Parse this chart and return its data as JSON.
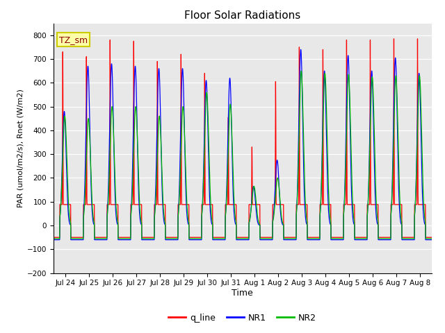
{
  "title": "Floor Solar Radiations",
  "xlabel": "Time",
  "ylabel": "PAR (umol/m2/s), Rnet (W/m2)",
  "ylim": [
    -200,
    850
  ],
  "yticks": [
    -200,
    -100,
    0,
    100,
    200,
    300,
    400,
    500,
    600,
    700,
    800
  ],
  "xtick_labels": [
    "Jul 24",
    "Jul 25",
    "Jul 26",
    "Jul 27",
    "Jul 28",
    "Jul 29",
    "Jul 30",
    "Jul 31",
    "Aug 1",
    "Aug 2",
    "Aug 3",
    "Aug 4",
    "Aug 5",
    "Aug 6",
    "Aug 7",
    "Aug 8"
  ],
  "legend_labels": [
    "q_line",
    "NR1",
    "NR2"
  ],
  "legend_colors": [
    "#ff0000",
    "#0000ff",
    "#00bb00"
  ],
  "line_colors": {
    "q_line": "#ff0000",
    "NR1": "#0000ff",
    "NR2": "#00bb00"
  },
  "bg_color": "#e8e8e8",
  "annotation_text": "TZ_sm",
  "annotation_bg": "#ffffaa",
  "annotation_border": "#cccc00",
  "n_points_per_day": 144,
  "n_days": 16
}
